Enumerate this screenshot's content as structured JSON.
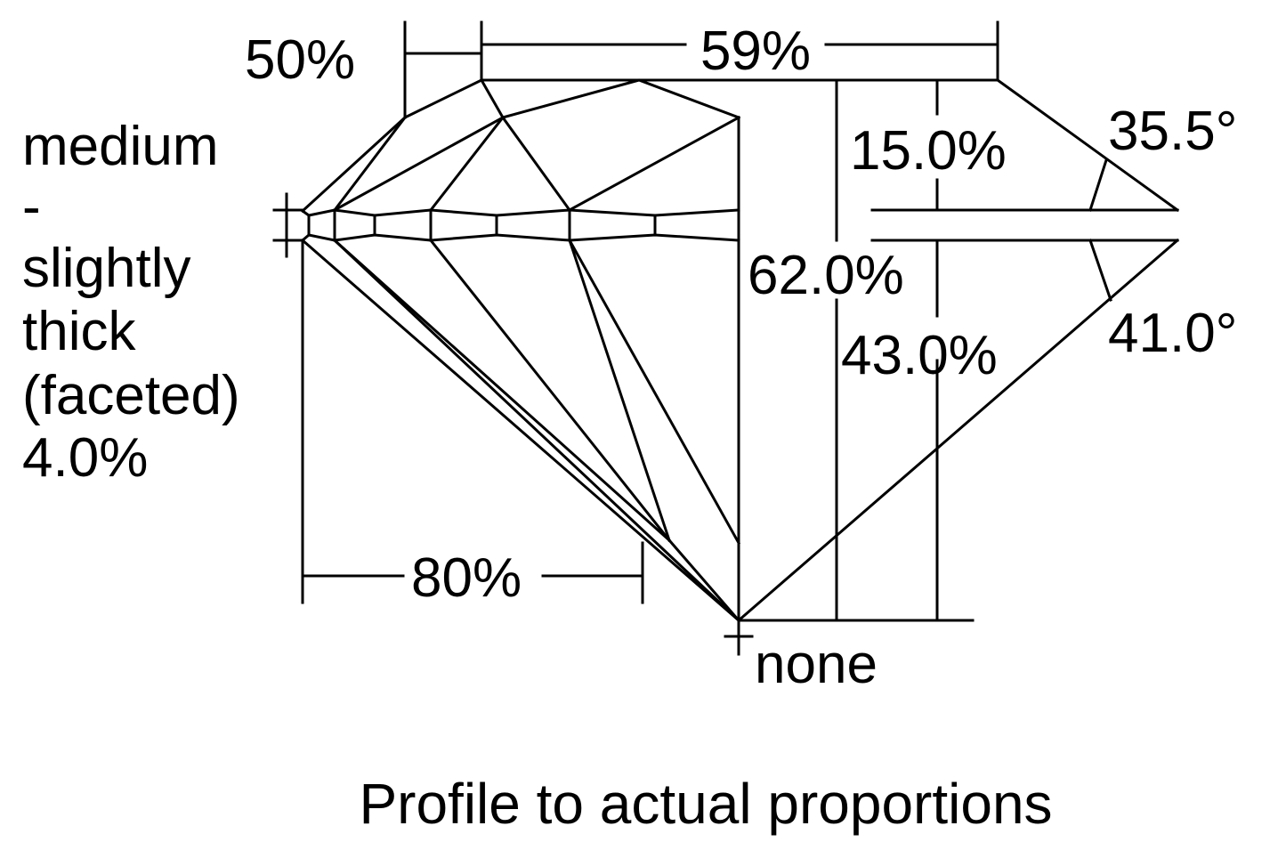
{
  "diagram": {
    "title": "Profile to actual proportions",
    "crown_height": "15.0%",
    "total_depth": "62.0%",
    "pavilion_depth": "43.0%",
    "crown_angle": "35.5°",
    "pavilion_angle": "41.0°",
    "table": "59%",
    "star_length": "50%",
    "lower_half_length": "80%",
    "culet": "none",
    "girdle": [
      "medium",
      "-",
      "slightly",
      "thick",
      "(faceted)",
      "4.0%"
    ]
  }
}
